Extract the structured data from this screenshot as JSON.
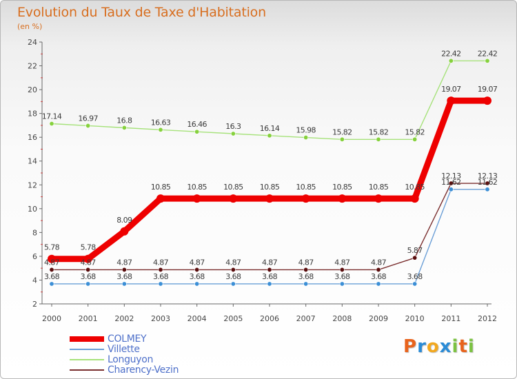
{
  "chart_data": {
    "type": "line",
    "title": "Evolution du Taux de Taxe d'Habitation",
    "subtitle": "(en %)",
    "x": [
      "2000",
      "2001",
      "2002",
      "2003",
      "2004",
      "2005",
      "2006",
      "2007",
      "2008",
      "2009",
      "2010",
      "2011",
      "2012"
    ],
    "ylim": [
      2,
      24
    ],
    "yticks": [
      2,
      4,
      6,
      8,
      10,
      12,
      14,
      16,
      18,
      20,
      22,
      24
    ],
    "grid": false,
    "legend_position": "bottom-left",
    "series": [
      {
        "name": "COLMEY",
        "color": "#ee0000",
        "values": [
          5.78,
          5.78,
          8.09,
          10.85,
          10.85,
          10.85,
          10.85,
          10.85,
          10.85,
          10.85,
          10.85,
          19.07,
          19.07
        ]
      },
      {
        "name": "Villette",
        "color": "#6a9ed6",
        "values": [
          3.68,
          3.68,
          3.68,
          3.68,
          3.68,
          3.68,
          3.68,
          3.68,
          3.68,
          3.68,
          3.68,
          11.62,
          11.62
        ]
      },
      {
        "name": "Longuyon",
        "color": "#a6e27a",
        "values": [
          17.14,
          16.97,
          16.8,
          16.63,
          16.46,
          16.3,
          16.14,
          15.98,
          15.82,
          15.82,
          15.82,
          22.42,
          22.42
        ]
      },
      {
        "name": "Charency-Vezin",
        "color": "#7a2e2e",
        "values": [
          4.87,
          4.87,
          4.87,
          4.87,
          4.87,
          4.87,
          4.87,
          4.87,
          4.87,
          4.87,
          5.87,
          12.13,
          12.13
        ]
      }
    ]
  },
  "logo": {
    "letters": [
      "P",
      "r",
      "o",
      "x",
      "i",
      "t",
      "i"
    ],
    "colors": [
      "#e8631c",
      "#2a8bd6",
      "#f2a81f",
      "#2a8bd6",
      "#7cc242",
      "#e8631c",
      "#7cc242"
    ]
  }
}
